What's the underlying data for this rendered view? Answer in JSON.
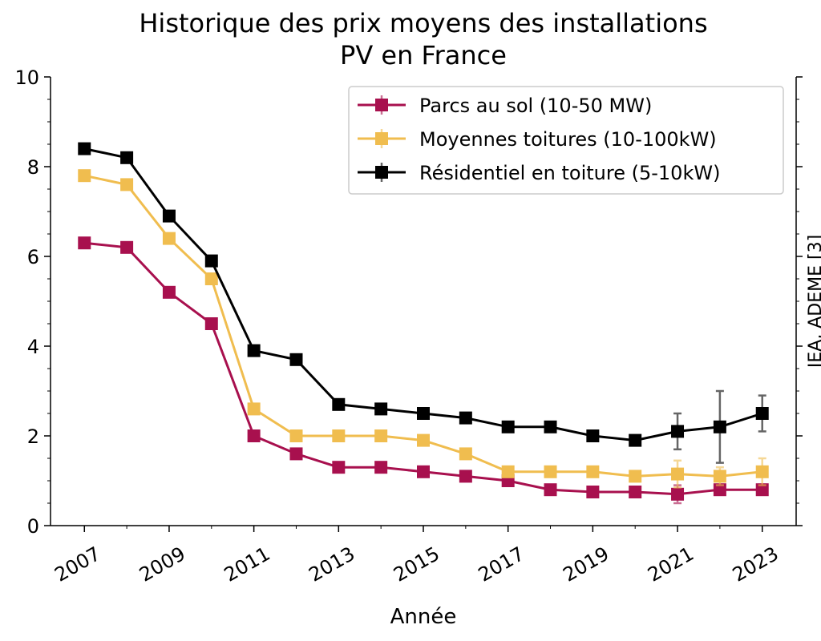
{
  "chart_data": {
    "type": "line",
    "title": [
      "Historique des prix moyens des installations",
      "PV en France"
    ],
    "xlabel": "Année",
    "y2label": "IEA, ADEME [3]",
    "x": [
      2007,
      2008,
      2009,
      2010,
      2011,
      2012,
      2013,
      2014,
      2015,
      2016,
      2017,
      2018,
      2019,
      2020,
      2021,
      2022,
      2023
    ],
    "series": [
      {
        "name": "Parcs au sol (10-50 MW)",
        "color": "#a8104e",
        "values": [
          6.3,
          6.2,
          5.2,
          4.5,
          2.0,
          1.6,
          1.3,
          1.3,
          1.2,
          1.1,
          1.0,
          0.8,
          0.75,
          0.75,
          0.7,
          0.8,
          0.8
        ],
        "errors": [
          null,
          null,
          null,
          null,
          null,
          null,
          null,
          null,
          null,
          null,
          null,
          null,
          null,
          null,
          0.2,
          0.1,
          0.1
        ]
      },
      {
        "name": "Moyennes toitures (10-100kW)",
        "color": "#f0bd4f",
        "values": [
          7.8,
          7.6,
          6.4,
          5.5,
          2.6,
          2.0,
          2.0,
          2.0,
          1.9,
          1.6,
          1.2,
          1.2,
          1.2,
          1.1,
          1.15,
          1.1,
          1.2
        ],
        "errors": [
          null,
          null,
          null,
          null,
          null,
          null,
          null,
          null,
          null,
          null,
          null,
          null,
          null,
          null,
          0.3,
          0.2,
          0.3
        ]
      },
      {
        "name": "Résidentiel en toiture (5-10kW)",
        "color": "#000000",
        "values": [
          8.4,
          8.2,
          6.9,
          5.9,
          3.9,
          3.7,
          2.7,
          2.6,
          2.5,
          2.4,
          2.2,
          2.2,
          2.0,
          1.9,
          2.1,
          2.2,
          2.5
        ],
        "errors": [
          null,
          null,
          null,
          null,
          null,
          null,
          null,
          null,
          null,
          null,
          null,
          null,
          null,
          null,
          0.4,
          0.8,
          0.4
        ]
      }
    ],
    "xlim": [
      2006.2,
      2023.8
    ],
    "xticks": [
      2007,
      2009,
      2011,
      2013,
      2015,
      2017,
      2019,
      2021,
      2023
    ],
    "ylim": [
      0,
      10
    ],
    "yticks": [
      0,
      2,
      4,
      6,
      8,
      10
    ],
    "legend": "upper right"
  }
}
